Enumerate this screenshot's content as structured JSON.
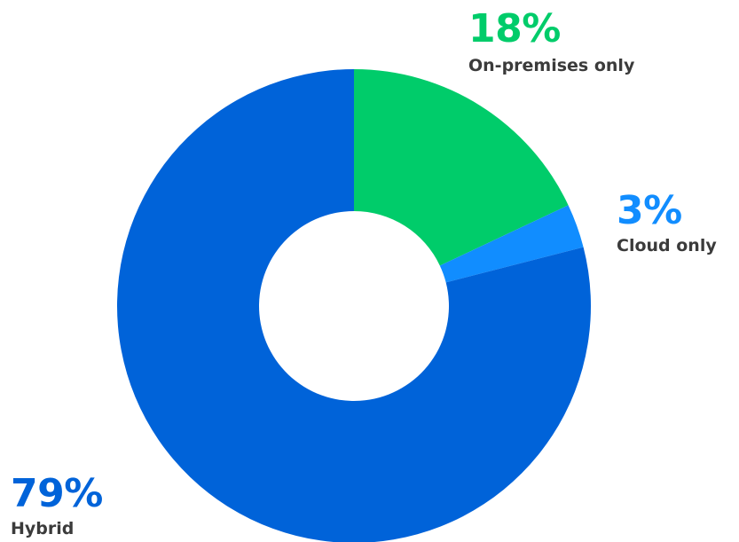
{
  "chart_data": {
    "type": "pie",
    "donut": true,
    "title": "",
    "slices": [
      {
        "label": "On-premises only",
        "value": 18,
        "value_label": "18%",
        "color": "#00CC6A"
      },
      {
        "label": "Cloud only",
        "value": 3,
        "value_label": "3%",
        "color": "#118DFF"
      },
      {
        "label": "Hybrid",
        "value": 79,
        "value_label": "79%",
        "color": "#0063D9"
      }
    ],
    "legend": "none",
    "label_style": "callouts-outside"
  }
}
